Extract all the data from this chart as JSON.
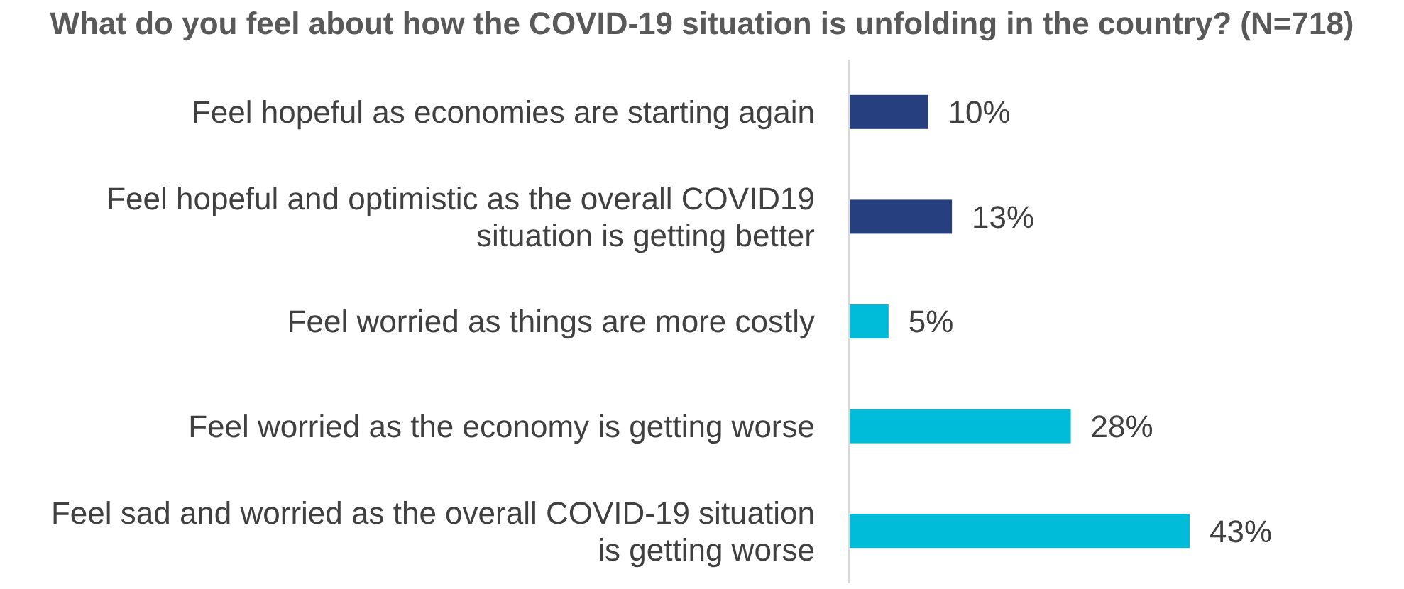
{
  "chart_data": {
    "type": "bar",
    "orientation": "horizontal",
    "title": "What do you feel about how the COVID-19 situation is unfolding in the country? (N=718)",
    "categories": [
      "Feel hopeful as economies are starting again",
      "Feel hopeful and optimistic as the overall COVID19 situation is getting better",
      "Feel worried as things are more costly",
      "Feel worried as the economy is getting worse",
      "Feel sad and worried as the overall COVID-19 situation is getting worse"
    ],
    "values": [
      10,
      13,
      5,
      28,
      43
    ],
    "colors": [
      "#253f7f",
      "#253f7f",
      "#00bcd9",
      "#00bcd9",
      "#00bcd9"
    ],
    "value_labels": [
      "10%",
      "13%",
      "5%",
      "28%",
      "43%"
    ],
    "relative": false
  }
}
